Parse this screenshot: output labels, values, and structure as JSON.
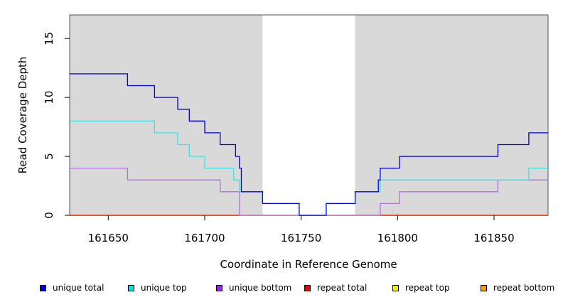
{
  "chart_data": {
    "type": "line",
    "step": true,
    "title": "",
    "xlabel": "Coordinate in Reference Genome",
    "ylabel": "Read Coverage Depth",
    "xlim": [
      161630,
      161878
    ],
    "ylim": [
      0,
      17
    ],
    "x_ticks": [
      161650,
      161700,
      161750,
      161800,
      161850
    ],
    "y_ticks": [
      0,
      5,
      10,
      15
    ],
    "shaded_regions": [
      [
        161630,
        161730
      ],
      [
        161778,
        161878
      ]
    ],
    "series": [
      {
        "name": "unique total",
        "color": "#0000e0",
        "points": [
          [
            161630,
            12
          ],
          [
            161660,
            11
          ],
          [
            161674,
            10
          ],
          [
            161686,
            9
          ],
          [
            161692,
            8
          ],
          [
            161700,
            7
          ],
          [
            161708,
            6
          ],
          [
            161716,
            5
          ],
          [
            161718,
            4
          ],
          [
            161719,
            2
          ],
          [
            161730,
            1
          ],
          [
            161749,
            0
          ],
          [
            161763,
            1
          ],
          [
            161778,
            2
          ],
          [
            161790,
            3
          ],
          [
            161791,
            4
          ],
          [
            161801,
            5
          ],
          [
            161852,
            6
          ],
          [
            161868,
            7
          ],
          [
            161878,
            7
          ]
        ]
      },
      {
        "name": "unique top",
        "color": "#40e0e0",
        "points": [
          [
            161630,
            8
          ],
          [
            161674,
            7
          ],
          [
            161686,
            6
          ],
          [
            161692,
            5
          ],
          [
            161700,
            4
          ],
          [
            161715,
            3
          ],
          [
            161718,
            2
          ],
          [
            161730,
            1
          ],
          [
            161749,
            0
          ],
          [
            161763,
            1
          ],
          [
            161778,
            2
          ],
          [
            161791,
            3
          ],
          [
            161868,
            4
          ],
          [
            161878,
            4
          ]
        ]
      },
      {
        "name": "unique bottom",
        "color": "#b070e0",
        "points": [
          [
            161630,
            4
          ],
          [
            161660,
            3
          ],
          [
            161708,
            2
          ],
          [
            161718,
            0
          ],
          [
            161791,
            1
          ],
          [
            161801,
            2
          ],
          [
            161852,
            3
          ],
          [
            161878,
            3
          ]
        ]
      },
      {
        "name": "repeat total",
        "color": "#e00000",
        "points": [
          [
            161630,
            0
          ],
          [
            161878,
            0
          ]
        ]
      },
      {
        "name": "repeat top",
        "color": "#f0f000",
        "points": [
          [
            161630,
            0
          ],
          [
            161878,
            0
          ]
        ]
      },
      {
        "name": "repeat bottom",
        "color": "#f0a000",
        "points": [
          [
            161630,
            0
          ],
          [
            161878,
            0
          ]
        ]
      }
    ],
    "legend_placement": "bottom"
  },
  "legend": [
    {
      "label": "unique total",
      "color": "#0000e0"
    },
    {
      "label": "unique top",
      "color": "#00e0e0"
    },
    {
      "label": "unique bottom",
      "color": "#a020f0"
    },
    {
      "label": "repeat total",
      "color": "#e00000"
    },
    {
      "label": "repeat top",
      "color": "#f0f000"
    },
    {
      "label": "repeat bottom",
      "color": "#f0a000"
    }
  ]
}
